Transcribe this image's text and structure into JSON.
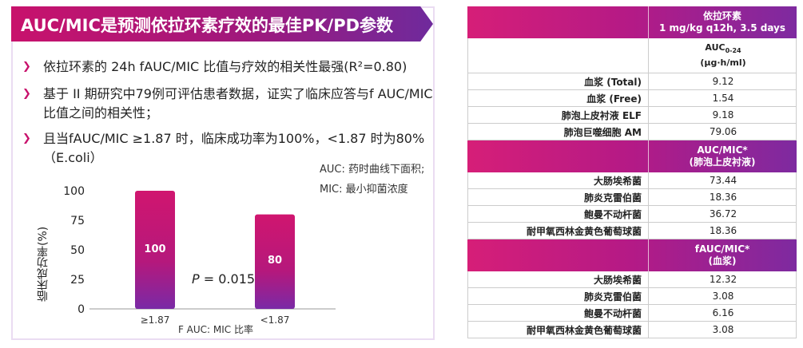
{
  "title": "AUC/MIC是预测依拉环素疗效的最佳PK/PD参数",
  "bullets": [
    {
      "line1": "依拉环素的 24h fAUC/MIC 比值与疗效的相关性最强(R²=0.80)",
      "line2": ""
    },
    {
      "line1": "基于 II 期研究中79例可评估患者数据，证实了临床应答与f AUC/MIC",
      "line2": "比值之间的相关性；"
    },
    {
      "line1": "且当fAUC/MIC ≥1.87 时，临床成功率为100%，<1.87 时为80%",
      "line2": "（E.coli）"
    }
  ],
  "notes": {
    "auc": "AUC: 药时曲线下面积;",
    "mic": "MIC: 最小抑菌浓度"
  },
  "chart_data": {
    "type": "bar",
    "categories": [
      "≥1.87",
      "<1.87"
    ],
    "values": [
      100,
      80
    ],
    "xlabel": "F AUC: MIC 比率",
    "ylabel": "临床成功率(%)",
    "ylim": [
      0,
      100
    ],
    "yticks": [
      "0",
      "25",
      "50",
      "75",
      "100"
    ],
    "annotation": "= 0.015",
    "annotation_p": "P",
    "bar_color_top": "#d0166f",
    "bar_color_bottom": "#7a2aa6"
  },
  "table": {
    "header1": {
      "line1": "依拉环素",
      "line2": "1 mg/kg q12h, 3.5 days"
    },
    "header1_sub": {
      "line1": "AUC",
      "sub": "0-24",
      "line2": "(μg·h/ml)"
    },
    "group1": [
      {
        "label": "血浆 (Total)",
        "value": "9.12"
      },
      {
        "label": "血浆 (Free)",
        "value": "1.54"
      },
      {
        "label": "肺泡上皮衬液 ELF",
        "value": "9.18"
      },
      {
        "label": "肺泡巨噬细胞 AM",
        "value": "79.06"
      }
    ],
    "header2": {
      "line1": "AUC/MIC*",
      "line2": "(肺泡上皮衬液)"
    },
    "group2": [
      {
        "label": "大肠埃希菌",
        "value": "73.44"
      },
      {
        "label": "肺炎克雷伯菌",
        "value": "18.36"
      },
      {
        "label": "鲍曼不动杆菌",
        "value": "36.72"
      },
      {
        "label": "耐甲氧西林金黄色葡萄球菌",
        "value": "18.36"
      }
    ],
    "header3": {
      "line1": "fAUC/MIC*",
      "line2": "(血浆)"
    },
    "group3": [
      {
        "label": "大肠埃希菌",
        "value": "12.32"
      },
      {
        "label": "肺炎克雷伯菌",
        "value": "3.08"
      },
      {
        "label": "鲍曼不动杆菌",
        "value": "6.16"
      },
      {
        "label": "耐甲氧西林金黄色葡萄球菌",
        "value": "3.08"
      }
    ]
  }
}
